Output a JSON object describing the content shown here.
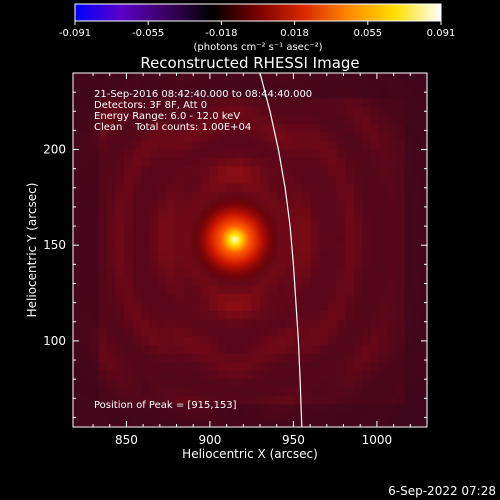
{
  "colorbar": {
    "tick_labels": [
      "-0.091",
      "-0.055",
      "-0.018",
      "0.018",
      "0.055",
      "0.091"
    ],
    "unit_label": "(photons cm⁻² s⁻¹ asec⁻²)",
    "range": [
      -0.091,
      0.091
    ],
    "colors": [
      "#0000ff",
      "#5a00c8",
      "#3a0060",
      "#000000",
      "#7a0000",
      "#d82800",
      "#ff8a00",
      "#ffe000",
      "#ffffff"
    ]
  },
  "chart_data": {
    "type": "heatmap",
    "title": "Reconstructed RHESSI Image",
    "xlabel": "Heliocentric X (arcsec)",
    "ylabel": "Heliocentric Y (arcsec)",
    "xlim": [
      818,
      1030
    ],
    "ylim": [
      55,
      240
    ],
    "x_ticks": [
      850,
      900,
      950,
      1000
    ],
    "y_ticks": [
      100,
      150,
      200
    ],
    "x_tick_labels": [
      "850",
      "900",
      "950",
      "1000"
    ],
    "y_tick_labels": [
      "100",
      "150",
      "200"
    ],
    "peak": {
      "x": 915,
      "y": 153
    },
    "limb_curve": [
      [
        930,
        240
      ],
      [
        936,
        220
      ],
      [
        941,
        200
      ],
      [
        945,
        180
      ],
      [
        948,
        160
      ],
      [
        950,
        140
      ],
      [
        951.5,
        120
      ],
      [
        953,
        100
      ],
      [
        954,
        80
      ],
      [
        955,
        55
      ]
    ],
    "annotations": [
      "21-Sep-2016 08:42:40.000 to 08:44:40.000",
      "Detectors: 3F 8F, Att 0",
      "Energy Range: 6.0 - 12.0 keV",
      "Clean    Total counts: 1.00E+04"
    ],
    "peak_label": "Position of Peak = [915,153]"
  },
  "footer": {
    "timestamp": "6-Sep-2022 07:28"
  }
}
